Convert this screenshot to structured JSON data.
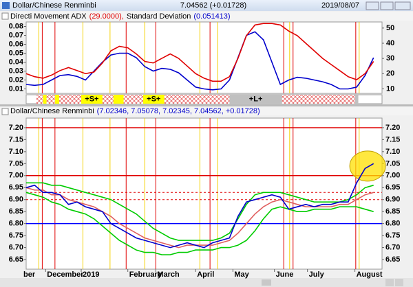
{
  "window": {
    "title": "Dollar/Chinese Renminbi",
    "quote": "7.04562 (+0.01728)",
    "date": "2019/08/07"
  },
  "markers": [
    {
      "x": 1.9,
      "color": "#e00000"
    },
    {
      "x": 3.4,
      "color": "#e00000"
    },
    {
      "x": 11.8,
      "color": "#e00000"
    },
    {
      "x": 15.3,
      "color": "#e00000"
    },
    {
      "x": 21.7,
      "color": "#e00000"
    },
    {
      "x": 30.4,
      "color": "#e00000"
    },
    {
      "x": 31.5,
      "color": "#e00000"
    },
    {
      "x": 38.9,
      "color": "#e00000"
    },
    {
      "x": 1.5,
      "color": "#f5d000"
    },
    {
      "x": 6.7,
      "color": "#f5d000"
    },
    {
      "x": 9.9,
      "color": "#f5d000"
    },
    {
      "x": 14,
      "color": "#f5d000"
    },
    {
      "x": 20.5,
      "color": "#f5d000"
    },
    {
      "x": 22.6,
      "color": "#f5d000"
    },
    {
      "x": 31.1,
      "color": "#f5d000"
    },
    {
      "x": 39.3,
      "color": "#f5d000"
    }
  ],
  "signal_strip": {
    "extent": [
      1.2,
      39.2
    ],
    "segments": [
      {
        "from": 2,
        "to": 2.4,
        "color": "#ffff00"
      },
      {
        "from": 3.4,
        "to": 3.9,
        "color": "#ffff00"
      },
      {
        "from": 6.5,
        "to": 9,
        "color": "#ffff00"
      },
      {
        "from": 10.3,
        "to": 11.5,
        "color": "#ffff00"
      },
      {
        "from": 13.8,
        "to": 16.3,
        "color": "#ffff00"
      },
      {
        "from": 24,
        "to": 30.2,
        "color": "#c0c0c0"
      },
      {
        "from": 38.8,
        "to": 39.2,
        "color": "#c0c0c0"
      }
    ],
    "labels": [
      {
        "x": 7.75,
        "text": "+S+"
      },
      {
        "x": 15.05,
        "text": "+S+"
      },
      {
        "x": 27.1,
        "text": "+L+"
      }
    ]
  },
  "chart_data": [
    {
      "type": "line",
      "title": "Directi Movement ADX",
      "title_value": "(29.0000),",
      "subtitle": "Standard Deviation",
      "subtitle_value": "(0.051413)",
      "x": [
        0,
        1,
        2,
        3,
        4,
        5,
        6,
        7,
        8,
        9,
        10,
        11,
        12,
        13,
        14,
        15,
        16,
        17,
        18,
        19,
        20,
        21,
        22,
        23,
        24,
        25,
        26,
        27,
        28,
        29,
        30,
        31,
        32,
        33,
        34,
        35,
        36,
        37,
        38,
        39,
        40,
        41
      ],
      "xlim": [
        0,
        42
      ],
      "ylim": [
        0.005,
        0.085
      ],
      "yticks": [
        0.01,
        0.02,
        0.03,
        0.04,
        0.05,
        0.06,
        0.07,
        0.08
      ],
      "y2lim": [
        7,
        54
      ],
      "y2ticks": [
        10,
        20,
        30,
        40,
        50
      ],
      "series": [
        {
          "color": "#0000cc",
          "values": [
            0.015,
            0.014,
            0.015,
            0.02,
            0.025,
            0.026,
            0.024,
            0.02,
            0.03,
            0.04,
            0.048,
            0.05,
            0.05,
            0.045,
            0.035,
            0.03,
            0.033,
            0.032,
            0.028,
            0.02,
            0.012,
            0.01,
            0.009,
            0.01,
            0.02,
            0.045,
            0.07,
            0.074,
            0.065,
            0.04,
            0.015,
            0.02,
            0.023,
            0.022,
            0.02,
            0.018,
            0.015,
            0.01,
            0.01,
            0.012,
            0.025,
            0.045
          ]
        },
        {
          "color": "#e00000",
          "axis": "y2",
          "values": [
            20,
            18,
            17,
            19,
            22,
            24,
            22,
            20,
            21,
            27,
            35,
            38,
            37,
            33,
            28,
            27,
            30,
            33,
            30,
            25,
            20,
            17,
            15,
            15,
            18,
            30,
            45,
            52,
            53,
            53,
            52,
            48,
            45,
            40,
            35,
            30,
            26,
            22,
            18,
            16,
            20,
            28
          ]
        }
      ]
    },
    {
      "type": "line",
      "title": "Dollar/Chinese Renminbi",
      "title_value": "(7.02346, 7.05078, 7.02345, 7.04562, +0.01728)",
      "x": [
        0,
        1,
        2,
        3,
        4,
        5,
        6,
        7,
        8,
        9,
        10,
        11,
        12,
        13,
        14,
        15,
        16,
        17,
        18,
        19,
        20,
        21,
        22,
        23,
        24,
        25,
        26,
        27,
        28,
        29,
        30,
        31,
        32,
        33,
        34,
        35,
        36,
        37,
        38,
        39,
        40,
        41
      ],
      "xlim": [
        0,
        42
      ],
      "xticks": [
        {
          "value": -0.6,
          "label": "ber"
        },
        {
          "value": 2.3,
          "label": "December"
        },
        {
          "value": 6.5,
          "label": "2019"
        },
        {
          "value": 12,
          "label": "February"
        },
        {
          "value": 15.3,
          "label": "March"
        },
        {
          "value": 20,
          "label": "April"
        },
        {
          "value": 24.4,
          "label": "May"
        },
        {
          "value": 29.3,
          "label": "June"
        },
        {
          "value": 33.2,
          "label": "July"
        },
        {
          "value": 38.8,
          "label": "August"
        }
      ],
      "ylim": [
        6.61,
        7.24
      ],
      "yticks": [
        {
          "value": 7.2,
          "label": "7.20"
        },
        7.15,
        {
          "value": 7.1,
          "label": "7.10"
        },
        7.05,
        {
          "value": 7,
          "label": "7.00"
        },
        6.95,
        {
          "value": 6.9,
          "label": "6.90"
        },
        6.85,
        {
          "value": 6.8,
          "label": "6.80"
        },
        6.75,
        {
          "value": 6.7,
          "label": "6.70"
        },
        6.65
      ],
      "hlines": [
        {
          "value": 7.2,
          "color": "#e00000",
          "dash": false
        },
        {
          "value": 7,
          "color": "#e00000",
          "dash": false
        },
        {
          "value": 6.93,
          "color": "#e00000",
          "dash": true
        },
        {
          "value": 6.9,
          "color": "#e00000",
          "dash": true
        },
        {
          "value": 6.8,
          "color": "#0000ff",
          "dash": false
        }
      ],
      "series": [
        {
          "color": "#00cc00",
          "values": [
            6.97,
            6.97,
            6.97,
            6.96,
            6.96,
            6.95,
            6.94,
            6.93,
            6.92,
            6.91,
            6.9,
            6.88,
            6.86,
            6.84,
            6.81,
            6.78,
            6.76,
            6.74,
            6.73,
            6.73,
            6.73,
            6.73,
            6.73,
            6.74,
            6.76,
            6.82,
            6.88,
            6.92,
            6.93,
            6.93,
            6.93,
            6.92,
            6.91,
            6.9,
            6.89,
            6.89,
            6.89,
            6.89,
            6.9,
            6.92,
            6.95,
            6.96
          ]
        },
        {
          "color": "#00cc00",
          "values": [
            6.93,
            6.92,
            6.91,
            6.89,
            6.88,
            6.86,
            6.85,
            6.84,
            6.82,
            6.79,
            6.76,
            6.73,
            6.71,
            6.69,
            6.68,
            6.68,
            6.67,
            6.67,
            6.68,
            6.68,
            6.69,
            6.69,
            6.69,
            6.7,
            6.7,
            6.71,
            6.73,
            6.77,
            6.82,
            6.86,
            6.87,
            6.86,
            6.85,
            6.85,
            6.86,
            6.86,
            6.86,
            6.87,
            6.87,
            6.87,
            6.86,
            6.85
          ]
        },
        {
          "color": "#e06060",
          "values": [
            6.95,
            6.94,
            6.94,
            6.92,
            6.92,
            6.9,
            6.89,
            6.88,
            6.87,
            6.85,
            6.83,
            6.8,
            6.78,
            6.76,
            6.74,
            6.73,
            6.72,
            6.71,
            6.7,
            6.71,
            6.71,
            6.71,
            6.71,
            6.72,
            6.73,
            6.76,
            6.8,
            6.84,
            6.87,
            6.89,
            6.9,
            6.89,
            6.88,
            6.87,
            6.87,
            6.87,
            6.87,
            6.88,
            6.88,
            6.9,
            6.92,
            6.93
          ]
        },
        {
          "color": "#0000cc",
          "values": [
            6.95,
            6.96,
            6.93,
            6.93,
            6.92,
            6.88,
            6.89,
            6.87,
            6.86,
            6.85,
            6.8,
            6.78,
            6.76,
            6.74,
            6.73,
            6.72,
            6.71,
            6.7,
            6.71,
            6.72,
            6.71,
            6.7,
            6.72,
            6.73,
            6.74,
            6.83,
            6.89,
            6.9,
            6.91,
            6.92,
            6.91,
            6.86,
            6.87,
            6.88,
            6.87,
            6.88,
            6.88,
            6.89,
            6.89,
            6.97,
            7.03,
            7.05
          ]
        }
      ],
      "highlight": {
        "x": 40.3,
        "y": 7.04,
        "color": "#ffe000"
      }
    }
  ]
}
